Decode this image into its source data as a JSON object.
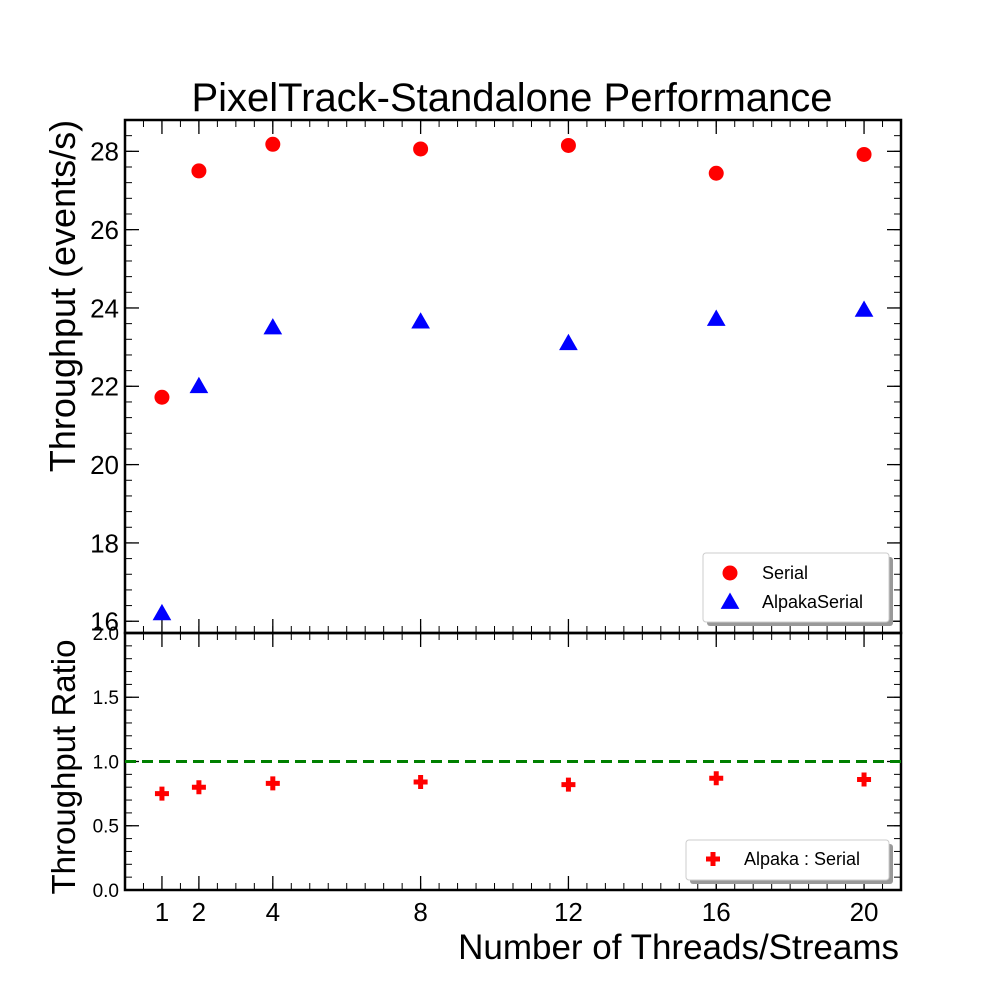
{
  "chart_data": [
    {
      "type": "scatter",
      "title": "PixelTrack-Standalone Performance",
      "ylabel": "Throughput (events/s)",
      "xlabel": "",
      "x": [
        1,
        2,
        4,
        8,
        12,
        16,
        20
      ],
      "xlim": [
        0,
        21
      ],
      "ylim": [
        15.7,
        28.8
      ],
      "yticks": [
        16,
        18,
        20,
        22,
        24,
        26,
        28
      ],
      "grid": false,
      "legend_position": "bottom-right",
      "series": [
        {
          "name": "Serial",
          "marker": "circle",
          "color": "#ff0000",
          "values": [
            21.72,
            27.5,
            28.18,
            28.06,
            28.15,
            27.44,
            27.92
          ]
        },
        {
          "name": "AlpakaSerial",
          "marker": "triangle",
          "color": "#0000ff",
          "values": [
            16.2,
            22.0,
            23.5,
            23.65,
            23.1,
            23.72,
            23.95
          ]
        }
      ]
    },
    {
      "type": "scatter",
      "title": "",
      "ylabel": "Throughput Ratio",
      "xlabel": "Number of Threads/Streams",
      "x": [
        1,
        2,
        4,
        8,
        12,
        16,
        20
      ],
      "xticks": [
        1,
        2,
        4,
        8,
        12,
        16,
        20
      ],
      "xlim": [
        0,
        21
      ],
      "ylim": [
        0.0,
        2.0
      ],
      "yticks": [
        "0.0",
        "0.5",
        "1.0",
        "1.5",
        "2.0"
      ],
      "grid": false,
      "legend_position": "bottom-right",
      "reference_line": {
        "y": 1.0,
        "color": "#008000",
        "style": "dashed"
      },
      "series": [
        {
          "name": "Alpaka : Serial",
          "marker": "plus",
          "color": "#ff0000",
          "values": [
            0.75,
            0.8,
            0.83,
            0.84,
            0.82,
            0.87,
            0.86
          ]
        }
      ]
    }
  ]
}
